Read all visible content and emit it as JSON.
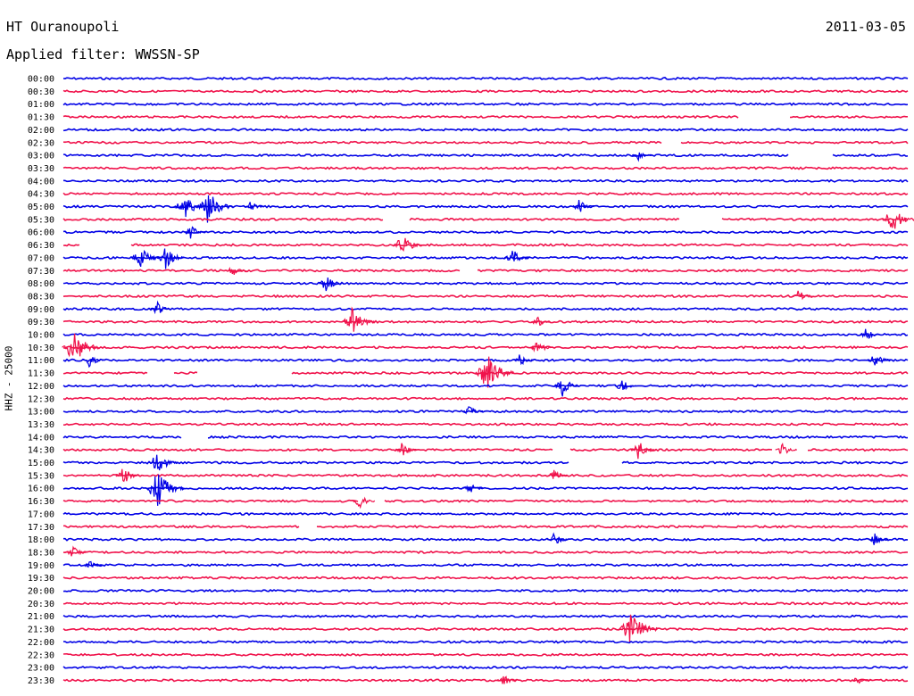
{
  "header": {
    "station": "HT Ouranoupoli",
    "filter_line": "Applied filter: WWSSN-SP",
    "date": "2011-03-05"
  },
  "colors": {
    "blue": "#0000e6",
    "red": "#f0124b",
    "background": "#ffffff"
  },
  "chart_data": {
    "type": "line",
    "title": "HT Ouranoupoli",
    "subtitle": "Applied filter: WWSSN-SP",
    "date": "2011-03-05",
    "ylabel": "HHZ - 25000",
    "xlabel": "",
    "grid": false,
    "trace_count": 48,
    "row_duration_minutes": 30,
    "color_pattern": [
      "blue",
      "red"
    ],
    "tick_labels": [
      "00:00",
      "00:30",
      "01:00",
      "01:30",
      "02:00",
      "02:30",
      "03:00",
      "03:30",
      "04:00",
      "04:30",
      "05:00",
      "05:30",
      "06:00",
      "06:30",
      "07:00",
      "07:30",
      "08:00",
      "08:30",
      "09:00",
      "09:30",
      "10:00",
      "10:30",
      "11:00",
      "11:30",
      "12:00",
      "12:30",
      "13:00",
      "13:30",
      "14:00",
      "14:30",
      "15:00",
      "15:30",
      "16:00",
      "16:30",
      "17:00",
      "17:30",
      "18:00",
      "18:30",
      "19:00",
      "19:30",
      "20:00",
      "20:30",
      "21:00",
      "21:30",
      "22:00",
      "22:30",
      "23:00",
      "23:30"
    ],
    "events": [
      {
        "row": "03:00",
        "at": 0.68,
        "amplitude": 0.5
      },
      {
        "row": "05:00",
        "at": 0.14,
        "amplitude": 1.2
      },
      {
        "row": "05:00",
        "at": 0.17,
        "amplitude": 1.4
      },
      {
        "row": "05:00",
        "at": 0.22,
        "amplitude": 0.5
      },
      {
        "row": "05:00",
        "at": 0.61,
        "amplitude": 0.6
      },
      {
        "row": "05:30",
        "at": 0.98,
        "amplitude": 1.2
      },
      {
        "row": "06:00",
        "at": 0.15,
        "amplitude": 0.6
      },
      {
        "row": "06:30",
        "at": 0.4,
        "amplitude": 1.0
      },
      {
        "row": "07:00",
        "at": 0.09,
        "amplitude": 1.0
      },
      {
        "row": "07:00",
        "at": 0.12,
        "amplitude": 0.9
      },
      {
        "row": "07:00",
        "at": 0.53,
        "amplitude": 0.8
      },
      {
        "row": "07:30",
        "at": 0.2,
        "amplitude": 0.5
      },
      {
        "row": "08:00",
        "at": 0.31,
        "amplitude": 0.7
      },
      {
        "row": "08:30",
        "at": 0.87,
        "amplitude": 0.5
      },
      {
        "row": "09:00",
        "at": 0.11,
        "amplitude": 0.6
      },
      {
        "row": "09:30",
        "at": 0.34,
        "amplitude": 1.2
      },
      {
        "row": "09:30",
        "at": 0.56,
        "amplitude": 0.5
      },
      {
        "row": "10:00",
        "at": 0.95,
        "amplitude": 0.5
      },
      {
        "row": "10:30",
        "at": 0.01,
        "amplitude": 1.5
      },
      {
        "row": "10:30",
        "at": 0.56,
        "amplitude": 0.6
      },
      {
        "row": "11:00",
        "at": 0.03,
        "amplitude": 0.6
      },
      {
        "row": "11:00",
        "at": 0.54,
        "amplitude": 0.5
      },
      {
        "row": "11:00",
        "at": 0.96,
        "amplitude": 0.7
      },
      {
        "row": "11:30",
        "at": 0.5,
        "amplitude": 1.6
      },
      {
        "row": "12:00",
        "at": 0.59,
        "amplitude": 0.9
      },
      {
        "row": "12:00",
        "at": 0.66,
        "amplitude": 0.6
      },
      {
        "row": "13:00",
        "at": 0.48,
        "amplitude": 0.5
      },
      {
        "row": "14:30",
        "at": 0.4,
        "amplitude": 0.6
      },
      {
        "row": "14:30",
        "at": 0.68,
        "amplitude": 0.8
      },
      {
        "row": "14:30",
        "at": 0.85,
        "amplitude": 0.6
      },
      {
        "row": "15:00",
        "at": 0.11,
        "amplitude": 1.0
      },
      {
        "row": "15:30",
        "at": 0.07,
        "amplitude": 0.8
      },
      {
        "row": "15:30",
        "at": 0.58,
        "amplitude": 0.5
      },
      {
        "row": "16:00",
        "at": 0.11,
        "amplitude": 1.6
      },
      {
        "row": "16:00",
        "at": 0.48,
        "amplitude": 0.5
      },
      {
        "row": "16:30",
        "at": 0.35,
        "amplitude": 0.6
      },
      {
        "row": "18:00",
        "at": 0.58,
        "amplitude": 0.6
      },
      {
        "row": "18:00",
        "at": 0.96,
        "amplitude": 0.5
      },
      {
        "row": "18:30",
        "at": 0.01,
        "amplitude": 0.6
      },
      {
        "row": "19:00",
        "at": 0.03,
        "amplitude": 0.4
      },
      {
        "row": "21:30",
        "at": 0.67,
        "amplitude": 1.6
      },
      {
        "row": "23:30",
        "at": 0.52,
        "amplitude": 0.5
      },
      {
        "row": "23:30",
        "at": 0.94,
        "amplitude": 0.4
      }
    ],
    "gaps": [
      {
        "row": "01:30",
        "from": 0.8,
        "to": 0.86
      },
      {
        "row": "02:30",
        "from": 0.71,
        "to": 0.73
      },
      {
        "row": "03:00",
        "from": 0.86,
        "to": 0.91
      },
      {
        "row": "05:30",
        "from": 0.38,
        "to": 0.41
      },
      {
        "row": "05:30",
        "from": 0.73,
        "to": 0.78
      },
      {
        "row": "06:30",
        "from": 0.02,
        "to": 0.08
      },
      {
        "row": "07:30",
        "from": 0.47,
        "to": 0.49
      },
      {
        "row": "11:30",
        "from": 0.1,
        "to": 0.13
      },
      {
        "row": "11:30",
        "from": 0.16,
        "to": 0.27
      },
      {
        "row": "14:00",
        "from": 0.14,
        "to": 0.17
      },
      {
        "row": "14:30",
        "from": 0.58,
        "to": 0.6
      },
      {
        "row": "14:30",
        "from": 0.84,
        "to": 0.88
      },
      {
        "row": "15:00",
        "from": 0.6,
        "to": 0.66
      },
      {
        "row": "16:30",
        "from": 0.35,
        "to": 0.38
      },
      {
        "row": "17:30",
        "from": 0.28,
        "to": 0.3
      }
    ]
  }
}
